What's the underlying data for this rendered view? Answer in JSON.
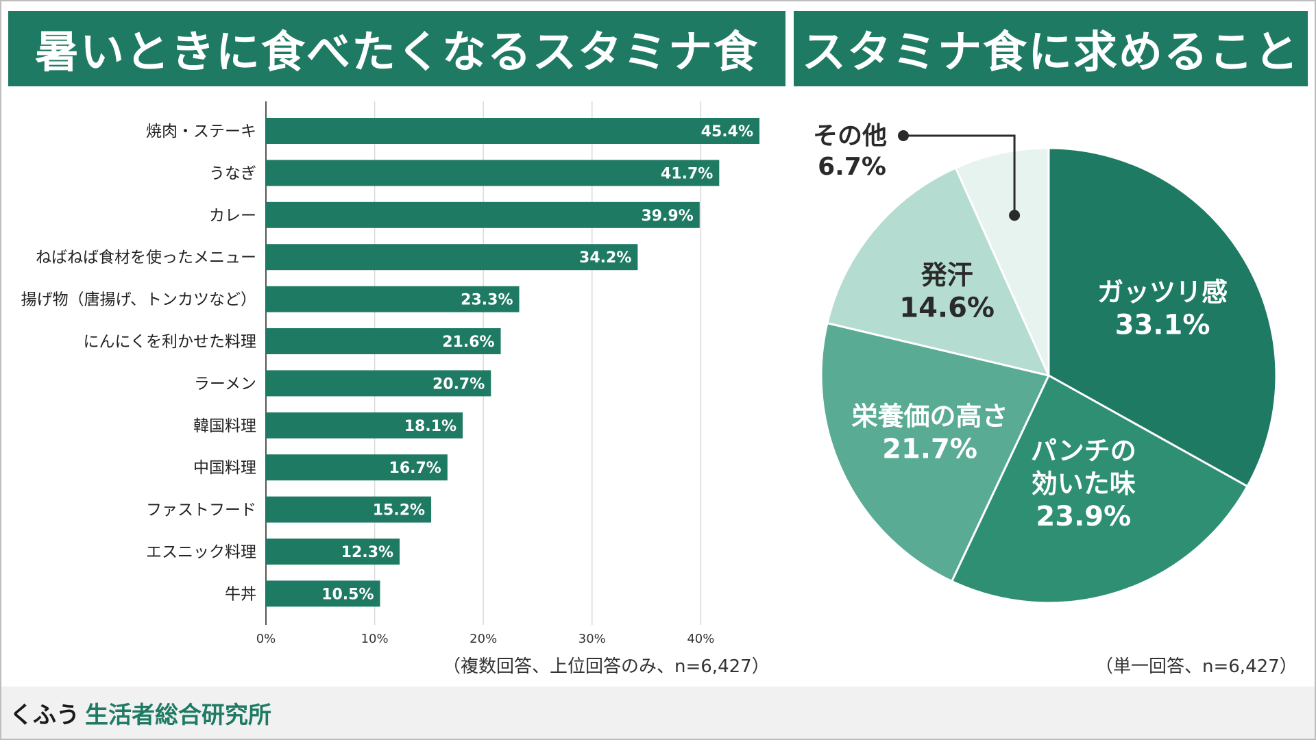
{
  "footer": {
    "brand_prefix": "くふう",
    "brand_name": "生活者総合研究所"
  },
  "colors": {
    "bar": "#1f7a63",
    "grid": "#d9d9d9",
    "pie_dark": "#1f7a63",
    "pie_mid": "#2f8f73",
    "pie_medium": "#5aab94",
    "pie_light": "#b4dcd0",
    "pie_pale": "#e7f3ef"
  },
  "chart_data": [
    {
      "type": "bar",
      "orientation": "horizontal",
      "title": "暑いときに食べたくなるスタミナ食",
      "note": "（複数回答、上位回答のみ、n=6,427）",
      "categories": [
        "焼肉・ステーキ",
        "うなぎ",
        "カレー",
        "ねばねば食材を使ったメニュー",
        "揚げ物（唐揚げ、トンカツなど）",
        "にんにくを利かせた料理",
        "ラーメン",
        "韓国料理",
        "中国料理",
        "ファストフード",
        "エスニック料理",
        "牛丼"
      ],
      "values": [
        45.4,
        41.7,
        39.9,
        34.2,
        23.3,
        21.6,
        20.7,
        18.1,
        16.7,
        15.2,
        12.3,
        10.5
      ],
      "value_labels": [
        "45.4%",
        "41.7%",
        "39.9%",
        "34.2%",
        "23.3%",
        "21.6%",
        "20.7%",
        "18.1%",
        "16.7%",
        "15.2%",
        "12.3%",
        "10.5%"
      ],
      "xlim": [
        0,
        45.4
      ],
      "ticks": [
        0,
        10,
        20,
        30,
        40
      ],
      "tick_labels": [
        "0%",
        "10%",
        "20%",
        "30%",
        "40%"
      ],
      "grid": true
    },
    {
      "type": "pie",
      "title": "スタミナ食に求めること",
      "note": "（単一回答、n=6,427）",
      "slices": [
        {
          "label_lines": [
            "ガッツリ感"
          ],
          "value": 33.1,
          "value_label": "33.1%",
          "color": "#1f7a63",
          "text_color": "#ffffff"
        },
        {
          "label_lines": [
            "パンチの",
            "効いた味"
          ],
          "value": 23.9,
          "value_label": "23.9%",
          "color": "#2f8f73",
          "text_color": "#ffffff"
        },
        {
          "label_lines": [
            "栄養価の高さ"
          ],
          "value": 21.7,
          "value_label": "21.7%",
          "color": "#5aab94",
          "text_color": "#ffffff"
        },
        {
          "label_lines": [
            "発汗"
          ],
          "value": 14.6,
          "value_label": "14.6%",
          "color": "#b4dcd0",
          "text_color": "#2a2a2a"
        },
        {
          "label_lines": [
            "その他"
          ],
          "value": 6.7,
          "value_label": "6.7%",
          "color": "#e7f3ef",
          "text_color": "#2a2a2a",
          "callout": true
        }
      ]
    }
  ]
}
